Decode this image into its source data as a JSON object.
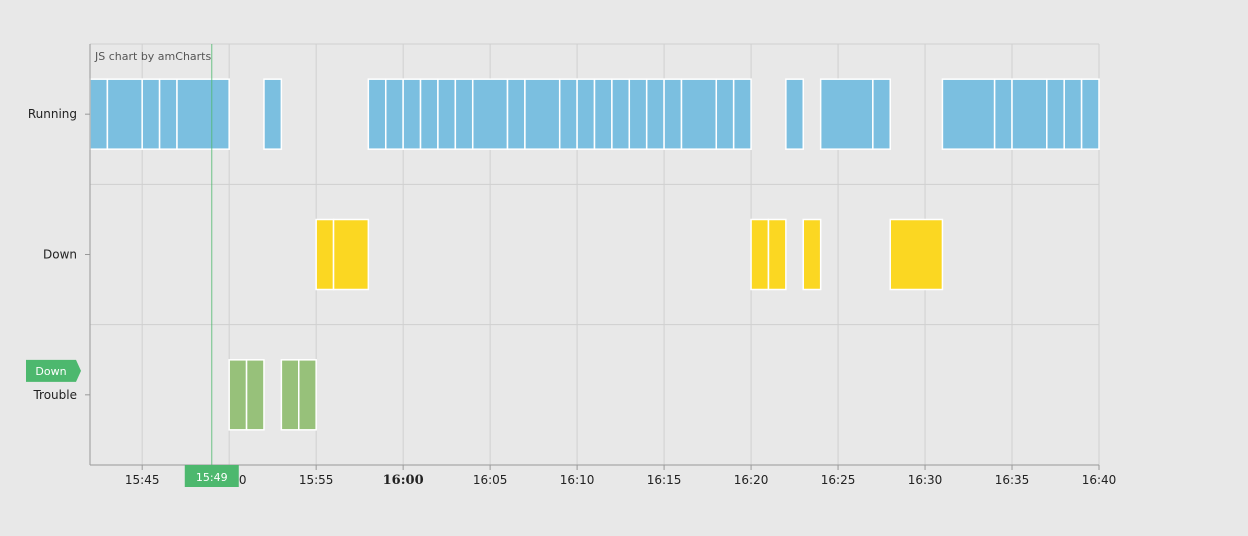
{
  "credit": "JS chart by amCharts",
  "cursor": {
    "category_label": "Down",
    "time_label": "15:49",
    "time": "15:49",
    "color": "#4db86e"
  },
  "chart_data": {
    "type": "gantt",
    "title": "",
    "xlabel": "",
    "ylabel": "",
    "xlim": [
      "15:42",
      "16:40"
    ],
    "x_ticks": [
      "15:45",
      "15:50",
      "15:55",
      "16:00",
      "16:05",
      "16:10",
      "16:15",
      "16:20",
      "16:25",
      "16:30",
      "16:35",
      "16:40"
    ],
    "bold_tick": "16:00",
    "grid": true,
    "categories": [
      "Running",
      "Down",
      "Trouble"
    ],
    "series": [
      {
        "name": "Running",
        "color": "#7bbfe0",
        "segments": [
          [
            "15:42",
            "15:43"
          ],
          [
            "15:43",
            "15:45"
          ],
          [
            "15:45",
            "15:46"
          ],
          [
            "15:46",
            "15:47"
          ],
          [
            "15:47",
            "15:50"
          ],
          [
            "15:52",
            "15:53"
          ],
          [
            "15:58",
            "15:59"
          ],
          [
            "15:59",
            "16:00"
          ],
          [
            "16:00",
            "16:01"
          ],
          [
            "16:01",
            "16:02"
          ],
          [
            "16:02",
            "16:03"
          ],
          [
            "16:03",
            "16:04"
          ],
          [
            "16:04",
            "16:06"
          ],
          [
            "16:06",
            "16:07"
          ],
          [
            "16:07",
            "16:09"
          ],
          [
            "16:09",
            "16:10"
          ],
          [
            "16:10",
            "16:11"
          ],
          [
            "16:11",
            "16:12"
          ],
          [
            "16:12",
            "16:13"
          ],
          [
            "16:13",
            "16:14"
          ],
          [
            "16:14",
            "16:15"
          ],
          [
            "16:15",
            "16:16"
          ],
          [
            "16:16",
            "16:18"
          ],
          [
            "16:18",
            "16:19"
          ],
          [
            "16:19",
            "16:20"
          ],
          [
            "16:22",
            "16:23"
          ],
          [
            "16:24",
            "16:27"
          ],
          [
            "16:27",
            "16:28"
          ],
          [
            "16:31",
            "16:34"
          ],
          [
            "16:34",
            "16:35"
          ],
          [
            "16:35",
            "16:37"
          ],
          [
            "16:37",
            "16:38"
          ],
          [
            "16:38",
            "16:39"
          ],
          [
            "16:39",
            "16:40"
          ]
        ]
      },
      {
        "name": "Down",
        "color": "#fbd722",
        "segments": [
          [
            "15:55",
            "15:56"
          ],
          [
            "15:56",
            "15:58"
          ],
          [
            "16:20",
            "16:21"
          ],
          [
            "16:21",
            "16:22"
          ],
          [
            "16:23",
            "16:24"
          ],
          [
            "16:28",
            "16:31"
          ]
        ]
      },
      {
        "name": "Trouble",
        "color": "#97c17a",
        "segments": [
          [
            "15:50",
            "15:51"
          ],
          [
            "15:51",
            "15:52"
          ],
          [
            "15:53",
            "15:54"
          ],
          [
            "15:54",
            "15:55"
          ]
        ]
      }
    ]
  }
}
